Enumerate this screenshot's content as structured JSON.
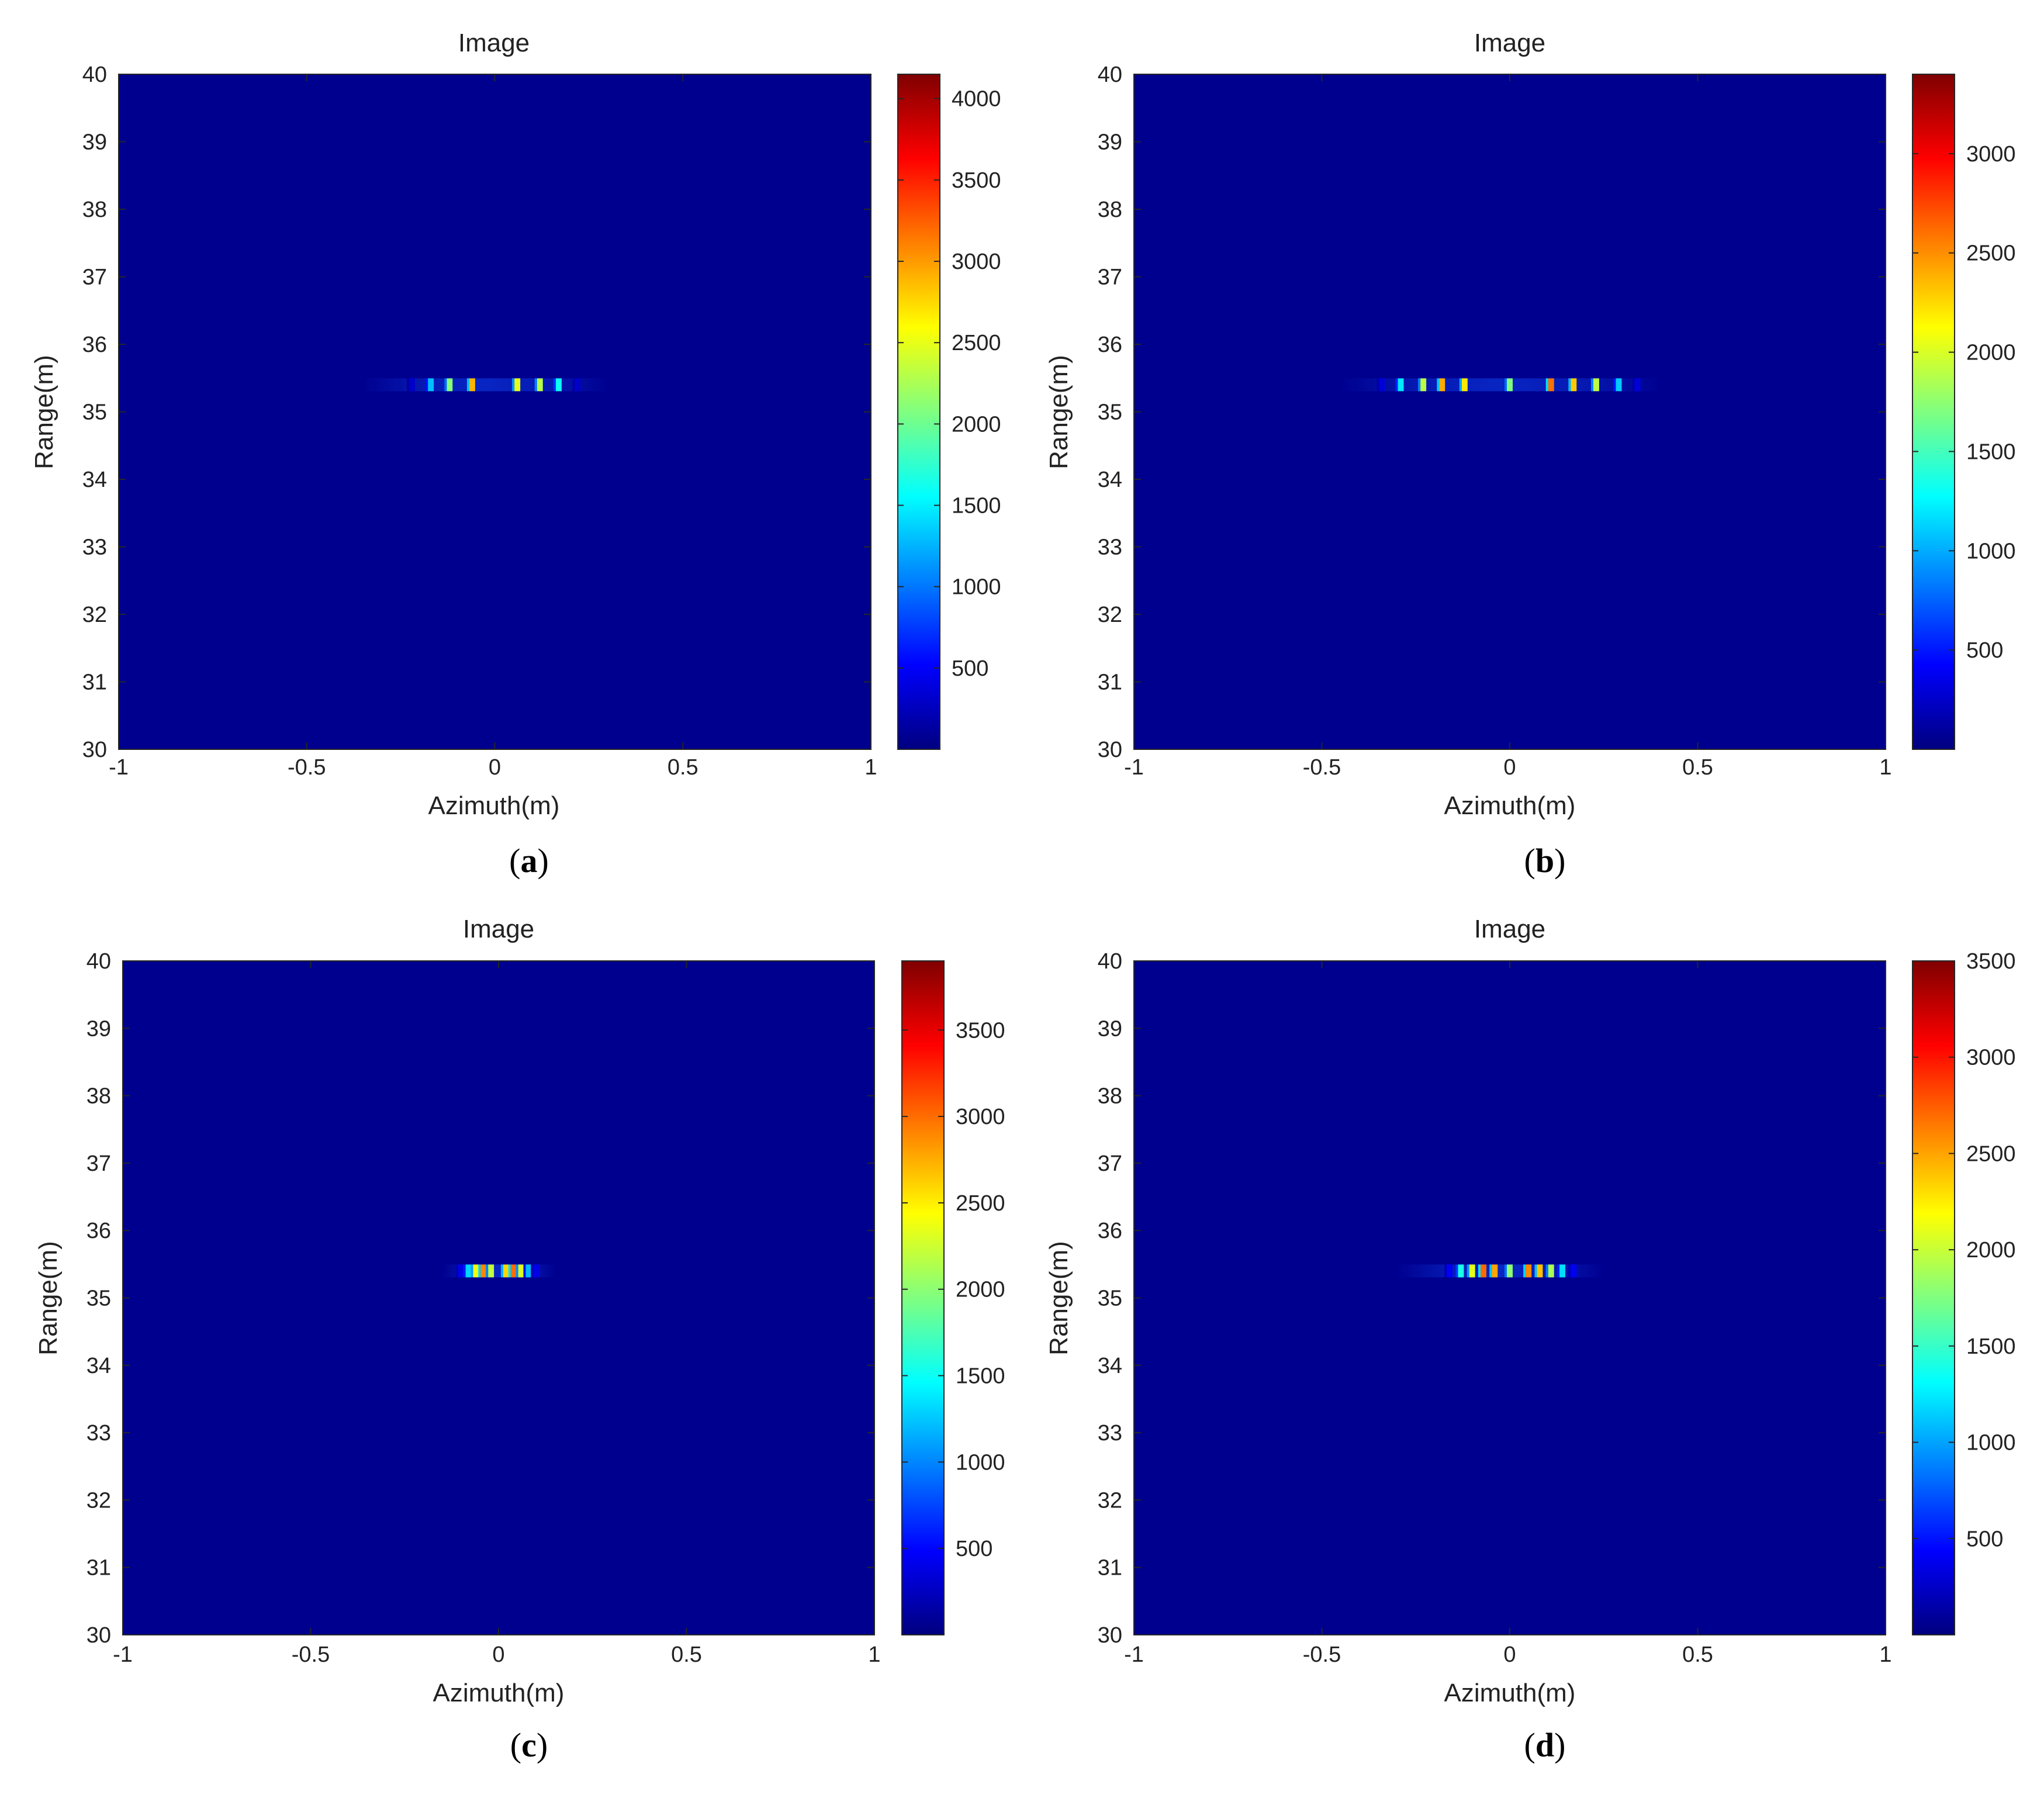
{
  "figure": {
    "panels": [
      {
        "caption_letter": "a"
      },
      {
        "caption_letter": "b"
      },
      {
        "caption_letter": "c"
      },
      {
        "caption_letter": "d"
      }
    ]
  },
  "chart_data": [
    {
      "type": "heatmap",
      "title": "Image",
      "xlabel": "Azimuth(m)",
      "ylabel": "Range(m)",
      "xlim": [
        -1,
        1
      ],
      "ylim": [
        30,
        40
      ],
      "x_ticks": [
        -1,
        -0.5,
        0,
        0.5,
        1
      ],
      "x_tick_labels": [
        "-1",
        "-0.5",
        "0",
        "0.5",
        "1"
      ],
      "y_ticks": [
        30,
        31,
        32,
        33,
        34,
        35,
        36,
        37,
        38,
        39,
        40
      ],
      "y_tick_labels": [
        "30",
        "31",
        "32",
        "33",
        "34",
        "35",
        "36",
        "37",
        "38",
        "39",
        "40"
      ],
      "colormap": "jet",
      "background_color": "#00008f",
      "grid": false,
      "colorbar": {
        "min": 0,
        "max": 4150,
        "ticks": [
          500,
          1000,
          1500,
          2000,
          2500,
          3000,
          3500,
          4000
        ],
        "tick_labels": [
          "500",
          "1000",
          "1500",
          "2000",
          "2500",
          "3000",
          "3500",
          "4000"
        ]
      },
      "target_range": 35.4,
      "halo": {
        "x_start": -0.35,
        "x_end": 0.3
      },
      "peaks": [
        {
          "x": -0.22,
          "value": 300
        },
        {
          "x": -0.17,
          "value": 1300
        },
        {
          "x": -0.12,
          "value": 2100
        },
        {
          "x": -0.06,
          "value": 2900
        },
        {
          "x": 0.06,
          "value": 2500
        },
        {
          "x": 0.12,
          "value": 2300
        },
        {
          "x": 0.17,
          "value": 1600
        },
        {
          "x": 0.22,
          "value": 300
        }
      ]
    },
    {
      "type": "heatmap",
      "title": "Image",
      "xlabel": "Azimuth(m)",
      "ylabel": "Range(m)",
      "xlim": [
        -1,
        1
      ],
      "ylim": [
        30,
        40
      ],
      "x_ticks": [
        -1,
        -0.5,
        0,
        0.5,
        1
      ],
      "x_tick_labels": [
        "-1",
        "-0.5",
        "0",
        "0.5",
        "1"
      ],
      "y_ticks": [
        30,
        31,
        32,
        33,
        34,
        35,
        36,
        37,
        38,
        39,
        40
      ],
      "y_tick_labels": [
        "30",
        "31",
        "32",
        "33",
        "34",
        "35",
        "36",
        "37",
        "38",
        "39",
        "40"
      ],
      "colormap": "jet",
      "background_color": "#00008f",
      "grid": false,
      "colorbar": {
        "min": 0,
        "max": 3400,
        "ticks": [
          500,
          1000,
          1500,
          2000,
          2500,
          3000
        ],
        "tick_labels": [
          "500",
          "1000",
          "1500",
          "2000",
          "2500",
          "3000"
        ]
      },
      "target_range": 35.4,
      "halo": {
        "x_start": -0.45,
        "x_end": 0.4
      },
      "peaks": [
        {
          "x": -0.34,
          "value": 300
        },
        {
          "x": -0.29,
          "value": 1200
        },
        {
          "x": -0.23,
          "value": 1900
        },
        {
          "x": -0.18,
          "value": 2400
        },
        {
          "x": -0.12,
          "value": 2200
        },
        {
          "x": 0.0,
          "value": 1700
        },
        {
          "x": 0.11,
          "value": 2600
        },
        {
          "x": 0.17,
          "value": 2300
        },
        {
          "x": 0.23,
          "value": 1900
        },
        {
          "x": 0.29,
          "value": 1100
        },
        {
          "x": 0.34,
          "value": 300
        }
      ]
    },
    {
      "type": "heatmap",
      "title": "Image",
      "xlabel": "Azimuth(m)",
      "ylabel": "Range(m)",
      "xlim": [
        -1,
        1
      ],
      "ylim": [
        30,
        40
      ],
      "x_ticks": [
        -1,
        -0.5,
        0,
        0.5,
        1
      ],
      "x_tick_labels": [
        "-1",
        "-0.5",
        "0",
        "0.5",
        "1"
      ],
      "y_ticks": [
        30,
        31,
        32,
        33,
        34,
        35,
        36,
        37,
        38,
        39,
        40
      ],
      "y_tick_labels": [
        "30",
        "31",
        "32",
        "33",
        "34",
        "35",
        "36",
        "37",
        "38",
        "39",
        "40"
      ],
      "colormap": "jet",
      "background_color": "#00008f",
      "grid": false,
      "colorbar": {
        "min": 0,
        "max": 3900,
        "ticks": [
          500,
          1000,
          1500,
          2000,
          2500,
          3000,
          3500
        ],
        "tick_labels": [
          "500",
          "1000",
          "1500",
          "2000",
          "2500",
          "3000",
          "3500"
        ]
      },
      "target_range": 35.4,
      "halo": {
        "x_start": -0.15,
        "x_end": 0.15
      },
      "peaks": [
        {
          "x": -0.1,
          "value": 400
        },
        {
          "x": -0.08,
          "value": 1300
        },
        {
          "x": -0.06,
          "value": 2400
        },
        {
          "x": -0.04,
          "value": 2900
        },
        {
          "x": -0.02,
          "value": 2200
        },
        {
          "x": 0.02,
          "value": 2600
        },
        {
          "x": 0.04,
          "value": 3000
        },
        {
          "x": 0.06,
          "value": 2300
        },
        {
          "x": 0.08,
          "value": 1200
        },
        {
          "x": 0.1,
          "value": 400
        }
      ]
    },
    {
      "type": "heatmap",
      "title": "Image",
      "xlabel": "Azimuth(m)",
      "ylabel": "Range(m)",
      "xlim": [
        -1,
        1
      ],
      "ylim": [
        30,
        40
      ],
      "x_ticks": [
        -1,
        -0.5,
        0,
        0.5,
        1
      ],
      "x_tick_labels": [
        "-1",
        "-0.5",
        "0",
        "0.5",
        "1"
      ],
      "y_ticks": [
        30,
        31,
        32,
        33,
        34,
        35,
        36,
        37,
        38,
        39,
        40
      ],
      "y_tick_labels": [
        "30",
        "31",
        "32",
        "33",
        "34",
        "35",
        "36",
        "37",
        "38",
        "39",
        "40"
      ],
      "colormap": "jet",
      "background_color": "#00008f",
      "grid": false,
      "colorbar": {
        "min": 0,
        "max": 3500,
        "ticks": [
          500,
          1000,
          1500,
          2000,
          2500,
          3000,
          3500
        ],
        "tick_labels": [
          "500",
          "1000",
          "1500",
          "2000",
          "2500",
          "3000",
          "3500"
        ]
      },
      "target_range": 35.4,
      "halo": {
        "x_start": -0.3,
        "x_end": 0.25
      },
      "peaks": [
        {
          "x": -0.16,
          "value": 400
        },
        {
          "x": -0.13,
          "value": 1400
        },
        {
          "x": -0.1,
          "value": 2100
        },
        {
          "x": -0.07,
          "value": 2700
        },
        {
          "x": -0.04,
          "value": 2500
        },
        {
          "x": 0.0,
          "value": 1800
        },
        {
          "x": 0.05,
          "value": 2600
        },
        {
          "x": 0.08,
          "value": 2400
        },
        {
          "x": 0.11,
          "value": 1900
        },
        {
          "x": 0.14,
          "value": 1200
        },
        {
          "x": 0.17,
          "value": 400
        }
      ]
    }
  ]
}
